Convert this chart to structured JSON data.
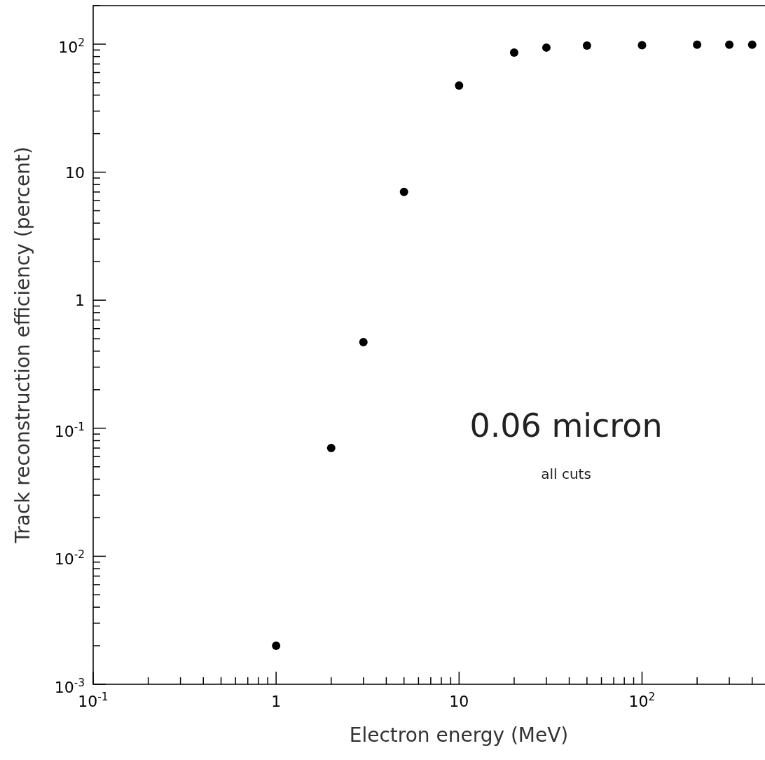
{
  "chart_data": {
    "type": "scatter",
    "xlabel": "Electron energy (MeV)",
    "ylabel": "Track reconstruction efficiency (percent)",
    "annotations": [
      "0.06 micron",
      "all cuts"
    ],
    "log": "xy",
    "marker": "circle",
    "grid": false,
    "x": [
      1,
      2,
      3,
      5,
      10,
      20,
      30,
      50,
      100,
      200,
      300,
      400
    ],
    "series": [
      {
        "color": "#000000",
        "values": [
          0.002,
          0.07,
          0.47,
          7,
          47.5,
          86,
          94,
          97.5,
          98,
          99,
          99,
          99
        ]
      }
    ],
    "xlim": [
      0.1,
      470
    ],
    "xticks": [
      {
        "value": 0.1,
        "label": "10$^{-1}$"
      },
      {
        "value": 0.2,
        "label": null
      },
      {
        "value": 0.3,
        "label": null
      },
      {
        "value": 0.4,
        "label": null
      },
      {
        "value": 0.5,
        "label": null
      },
      {
        "value": 0.6,
        "label": null
      },
      {
        "value": 0.7,
        "label": null
      },
      {
        "value": 0.8,
        "label": null
      },
      {
        "value": 0.9,
        "label": null
      },
      {
        "value": 1,
        "label": "1"
      },
      {
        "value": 2,
        "label": null
      },
      {
        "value": 3,
        "label": null
      },
      {
        "value": 4,
        "label": null
      },
      {
        "value": 5,
        "label": null
      },
      {
        "value": 6,
        "label": null
      },
      {
        "value": 7,
        "label": null
      },
      {
        "value": 8,
        "label": null
      },
      {
        "value": 9,
        "label": null
      },
      {
        "value": 10,
        "label": "10"
      },
      {
        "value": 20,
        "label": null
      },
      {
        "value": 30,
        "label": null
      },
      {
        "value": 40,
        "label": null
      },
      {
        "value": 50,
        "label": null
      },
      {
        "value": 60,
        "label": null
      },
      {
        "value": 70,
        "label": null
      },
      {
        "value": 80,
        "label": null
      },
      {
        "value": 90,
        "label": null
      },
      {
        "value": 100,
        "label": "10$^{2}$"
      },
      {
        "value": 200,
        "label": null
      },
      {
        "value": 300,
        "label": null
      },
      {
        "value": 400,
        "label": null
      }
    ],
    "ylim": [
      0.001,
      200
    ],
    "yticks": [
      {
        "value": 0.001,
        "label": "10$^{-3}$"
      },
      {
        "value": 0.002,
        "label": null
      },
      {
        "value": 0.003,
        "label": null
      },
      {
        "value": 0.004,
        "label": null
      },
      {
        "value": 0.005,
        "label": null
      },
      {
        "value": 0.006,
        "label": null
      },
      {
        "value": 0.007,
        "label": null
      },
      {
        "value": 0.008,
        "label": null
      },
      {
        "value": 0.009,
        "label": null
      },
      {
        "value": 0.01,
        "label": "10$^{-2}$"
      },
      {
        "value": 0.02,
        "label": null
      },
      {
        "value": 0.03,
        "label": null
      },
      {
        "value": 0.04,
        "label": null
      },
      {
        "value": 0.05,
        "label": null
      },
      {
        "value": 0.06,
        "label": null
      },
      {
        "value": 0.07,
        "label": null
      },
      {
        "value": 0.08,
        "label": null
      },
      {
        "value": 0.09,
        "label": null
      },
      {
        "value": 0.1,
        "label": "10$^{-1}$"
      },
      {
        "value": 0.2,
        "label": null
      },
      {
        "value": 0.3,
        "label": null
      },
      {
        "value": 0.4,
        "label": null
      },
      {
        "value": 0.5,
        "label": null
      },
      {
        "value": 0.6,
        "label": null
      },
      {
        "value": 0.7,
        "label": null
      },
      {
        "value": 0.8,
        "label": null
      },
      {
        "value": 0.9,
        "label": null
      },
      {
        "value": 1,
        "label": "1"
      },
      {
        "value": 2,
        "label": null
      },
      {
        "value": 3,
        "label": null
      },
      {
        "value": 4,
        "label": null
      },
      {
        "value": 5,
        "label": null
      },
      {
        "value": 6,
        "label": null
      },
      {
        "value": 7,
        "label": null
      },
      {
        "value": 8,
        "label": null
      },
      {
        "value": 9,
        "label": null
      },
      {
        "value": 10,
        "label": "10"
      },
      {
        "value": 20,
        "label": null
      },
      {
        "value": 30,
        "label": null
      },
      {
        "value": 40,
        "label": null
      },
      {
        "value": 50,
        "label": null
      },
      {
        "value": 60,
        "label": null
      },
      {
        "value": 70,
        "label": null
      },
      {
        "value": 80,
        "label": null
      },
      {
        "value": 90,
        "label": null
      },
      {
        "value": 100,
        "label": "10$^{2}$"
      },
      {
        "value": 200,
        "label": null
      }
    ]
  }
}
